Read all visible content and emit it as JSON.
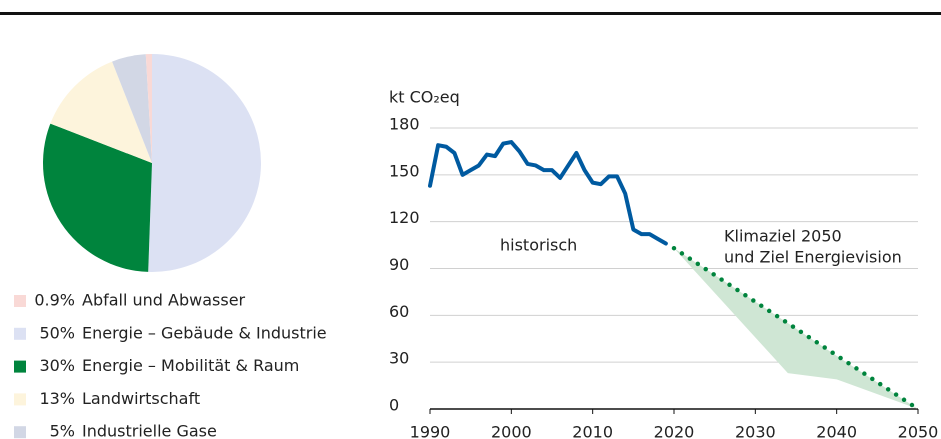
{
  "chart_data": [
    {
      "type": "pie",
      "labels": [
        "Abfall und Abwasser",
        "Energie – Gebäude & Industrie",
        "Energie – Mobilität & Raum",
        "Landwirtschaft",
        "Industrielle Gase"
      ],
      "values": [
        0.9,
        50,
        30,
        13,
        5
      ],
      "value_labels": [
        "0.9%",
        "50%",
        "30%",
        "13%",
        "5%"
      ],
      "colors": [
        "#f9d9d6",
        "#dce1f3",
        "#00843d",
        "#fdf4dc",
        "#d2d7e5"
      ],
      "text_colors": [
        "#9aa0a6",
        "#9aa0a6",
        "#1a1a1a",
        "#9aa0a6",
        "#9aa0a6"
      ]
    },
    {
      "type": "line",
      "y_label": "kt CO₂eq",
      "xlim": [
        1990,
        2050
      ],
      "ylim": [
        0,
        180
      ],
      "xticks": [
        1990,
        2000,
        2010,
        2020,
        2030,
        2040,
        2050
      ],
      "yticks": [
        0,
        30,
        60,
        90,
        120,
        150,
        180
      ],
      "grid": true,
      "series": [
        {
          "color": "#005aa0",
          "style": "solid",
          "x": [
            1990,
            1991,
            1992,
            1993,
            1994,
            1995,
            1996,
            1997,
            1998,
            1999,
            2000,
            2001,
            2002,
            2003,
            2004,
            2005,
            2006,
            2007,
            2008,
            2009,
            2010,
            2011,
            2012,
            2013,
            2014,
            2015,
            2016,
            2017,
            2018,
            2019
          ],
          "values": [
            143,
            169,
            168,
            164,
            150,
            153,
            156,
            163,
            162,
            170,
            171,
            165,
            157,
            156,
            153,
            153,
            148,
            156,
            164,
            153,
            145,
            144,
            149,
            149,
            138,
            115,
            112,
            112,
            109,
            106
          ]
        },
        {
          "color": "#00843d",
          "style": "dotted",
          "x": [
            2020,
            2050
          ],
          "values": [
            103,
            0
          ]
        }
      ],
      "band": {
        "color": "#cfe6d4",
        "x": [
          2020,
          2034,
          2040,
          2050
        ],
        "upper": [
          103,
          55,
          34,
          0
        ],
        "lower": [
          103,
          23,
          19,
          0
        ]
      },
      "annotations": [
        "historisch",
        "Klimaziel 2050",
        "und Ziel Energievision"
      ]
    }
  ]
}
